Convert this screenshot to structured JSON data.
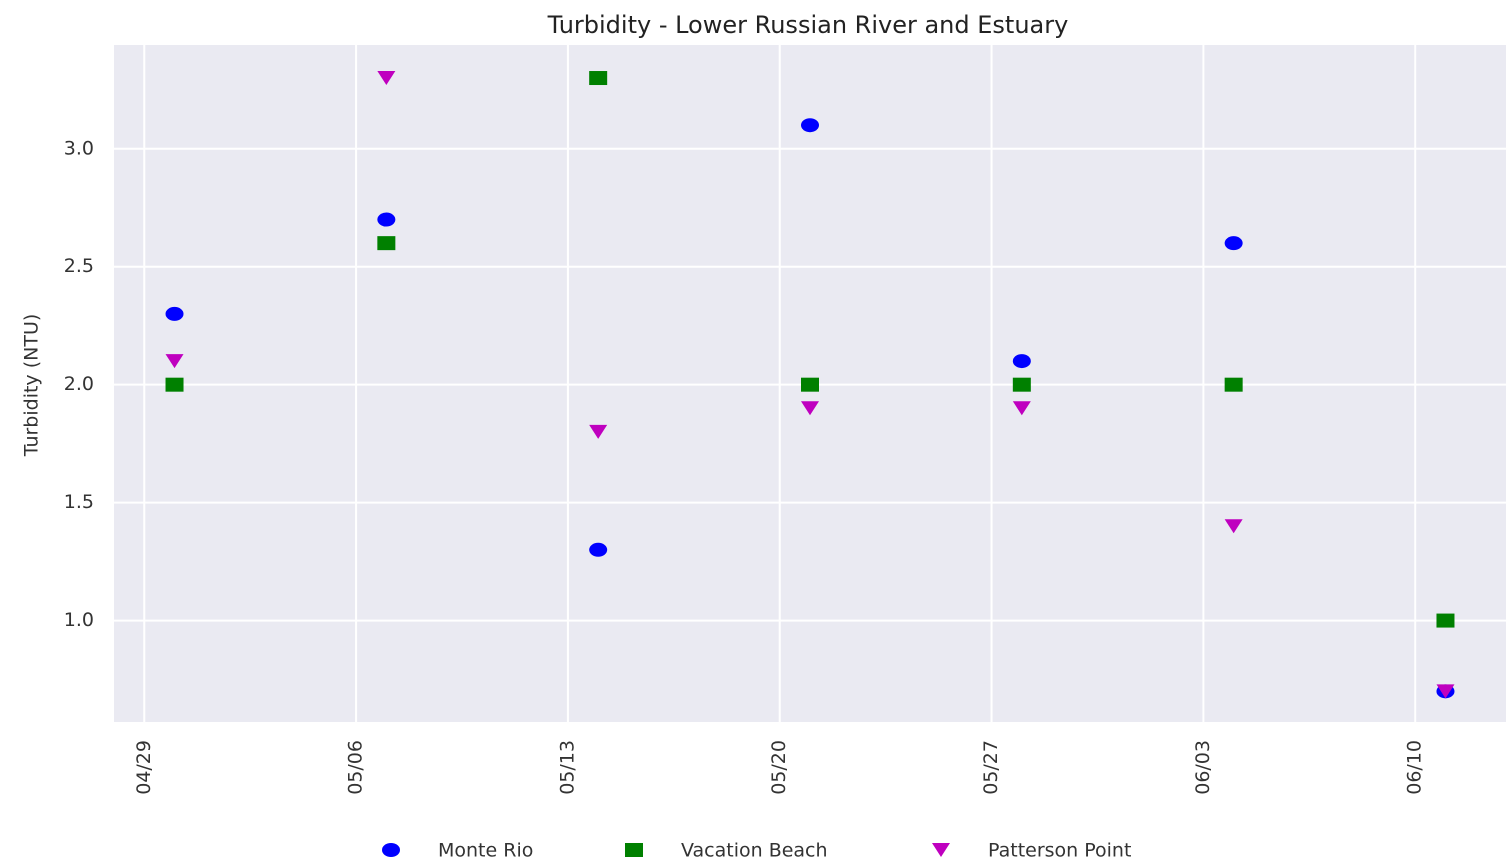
{
  "chart_data": {
    "type": "scatter",
    "title": "Turbidity - Lower Russian River and Estuary",
    "ylabel": "Turbidity (NTU)",
    "x": [
      "04/30",
      "05/07",
      "05/14",
      "05/21",
      "05/28",
      "06/04",
      "06/11"
    ],
    "xlim": [
      "04/28",
      "06/13"
    ],
    "xticks": [
      "04/29",
      "05/06",
      "05/13",
      "05/20",
      "05/27",
      "06/03",
      "06/10"
    ],
    "ylim": [
      0.57,
      3.44
    ],
    "yticks": [
      {
        "value": 1,
        "label": "1.0"
      },
      1.5,
      {
        "value": 2,
        "label": "2.0"
      },
      2.5,
      {
        "value": 3,
        "label": "3.0"
      }
    ],
    "grid": true,
    "legend": "bottom",
    "series": [
      {
        "name": "Monte Rio",
        "color": "#0000ff",
        "marker": "o",
        "values": [
          2.3,
          2.7,
          1.3,
          3.1,
          2.1,
          2.6,
          0.7
        ]
      },
      {
        "name": "Vacation Beach",
        "color": "#008000",
        "marker": "s",
        "values": [
          2.0,
          2.6,
          3.3,
          2.0,
          2.0,
          2.0,
          1.0
        ]
      },
      {
        "name": "Patterson Point",
        "color": "#bf00bf",
        "marker": "v",
        "values": [
          2.1,
          3.3,
          1.8,
          1.9,
          1.9,
          1.4,
          0.7
        ]
      }
    ]
  }
}
